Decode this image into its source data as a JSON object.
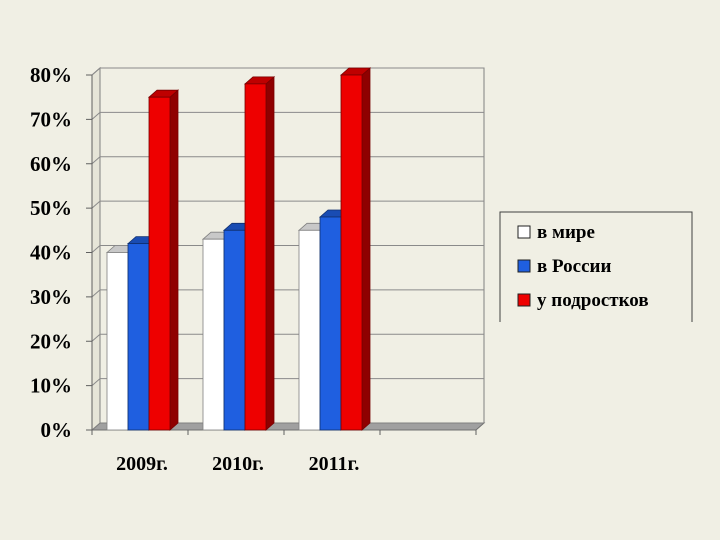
{
  "chart_data": {
    "type": "bar",
    "categories": [
      "2009г.",
      "2010г.",
      "2011г."
    ],
    "series": [
      {
        "name": "в мире",
        "color": "#ffffff",
        "values": [
          40,
          43,
          45
        ]
      },
      {
        "name": "в России",
        "color": "#1f5fe0",
        "values": [
          42,
          45,
          48
        ]
      },
      {
        "name": "у подростков",
        "color": "#ee0000",
        "values": [
          75,
          78,
          80
        ]
      }
    ],
    "y_tick_labels": [
      "0%",
      "10%",
      "20%",
      "30%",
      "40%",
      "50%",
      "60%",
      "70%",
      "80%"
    ],
    "ylim": [
      0,
      80
    ],
    "unit": "%",
    "grid": true,
    "legend_position": "right",
    "style": "3d-column"
  }
}
